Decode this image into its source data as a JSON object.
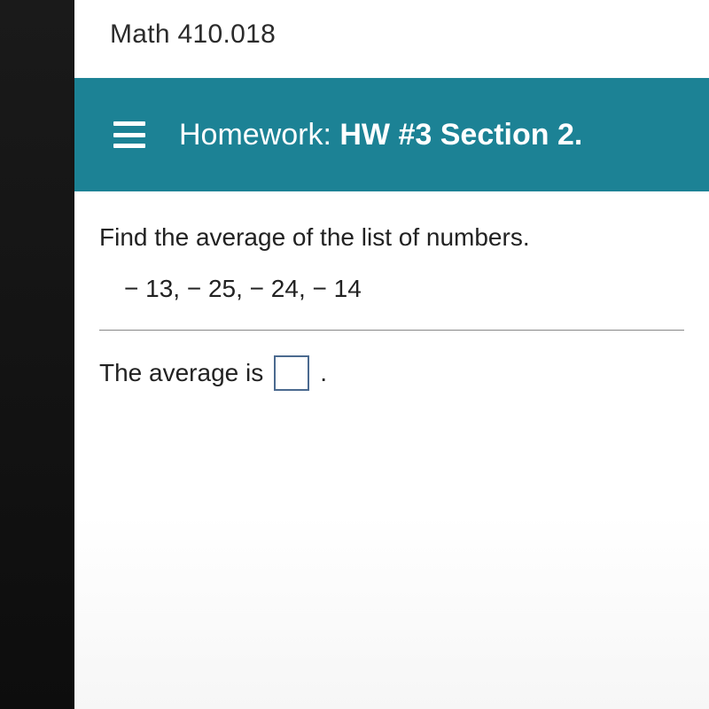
{
  "course": {
    "title": "Math 410.018"
  },
  "homework": {
    "label_light": "Homework: ",
    "label_bold": "HW #3 Section 2."
  },
  "problem": {
    "prompt": "Find the average of the list of numbers.",
    "numbers_display": "− 13,  − 25,  − 24,  − 14",
    "answer_prefix": "The average is ",
    "answer_suffix": ".",
    "answer_value": ""
  },
  "colors": {
    "header_bg": "#1c8295",
    "header_text": "#ffffff",
    "body_bg": "#ffffff",
    "text": "#222222",
    "input_border": "#4b6a8f",
    "divider": "#888888"
  }
}
